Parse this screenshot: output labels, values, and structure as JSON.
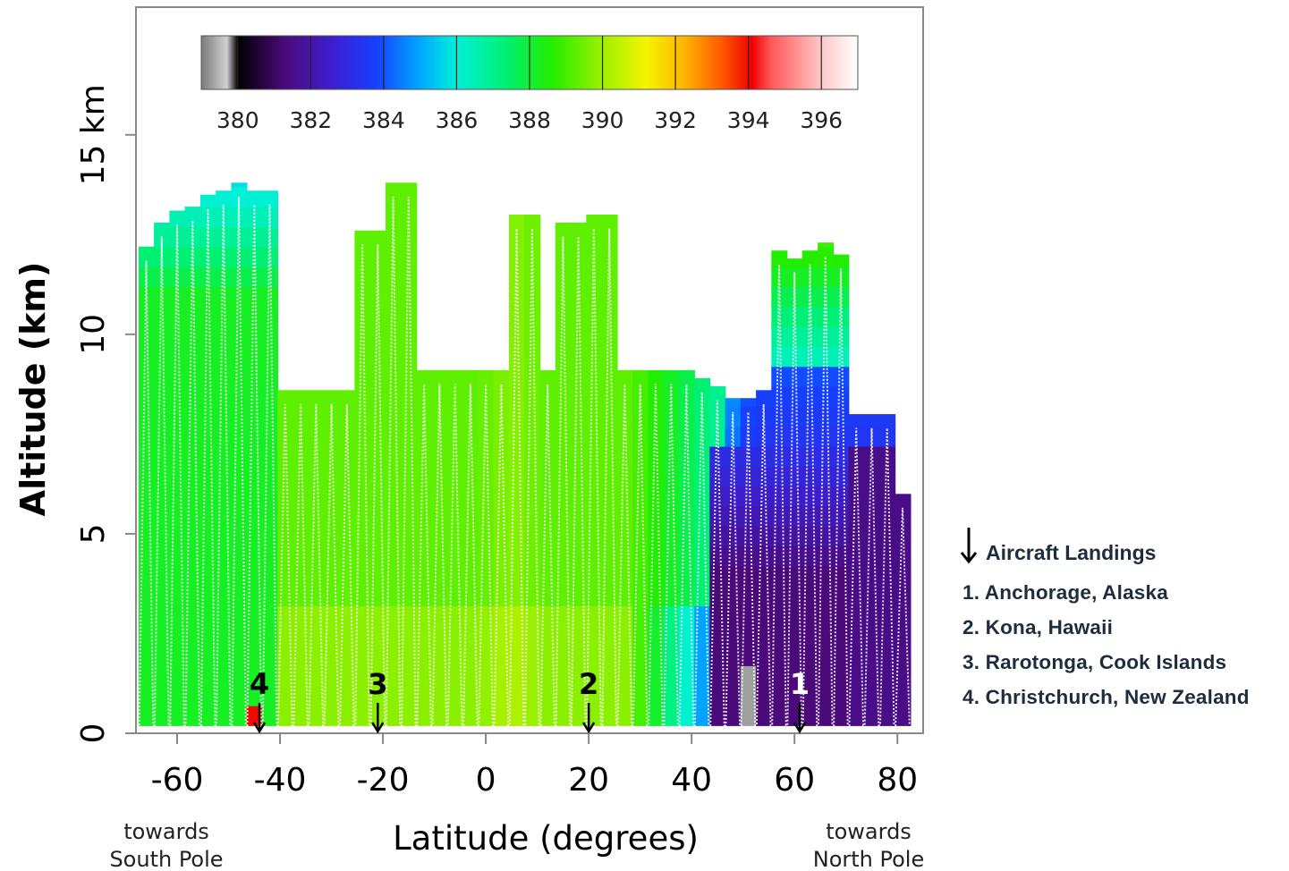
{
  "chart_data": {
    "type": "heatmap",
    "xlabel": "Latitude (degrees)",
    "ylabel": "Altitude (km)",
    "ylabel_top": "15 km",
    "x_ticks": [
      -60,
      -40,
      -20,
      0,
      20,
      40,
      60,
      80
    ],
    "y_ticks": [
      0,
      5,
      10
    ],
    "xlim": [
      -68,
      85
    ],
    "ylim": [
      0,
      18.2
    ],
    "x_notes": {
      "left": [
        "towards",
        "South Pole"
      ],
      "right": [
        "towards",
        "North Pole"
      ]
    },
    "colorbar": {
      "range": [
        379,
        397
      ],
      "ticks": [
        380,
        382,
        384,
        386,
        388,
        390,
        392,
        394,
        396
      ],
      "stops": [
        {
          "v": 379.0,
          "c": "#7a7a7a"
        },
        {
          "v": 379.7,
          "c": "#d0d0d0"
        },
        {
          "v": 380.0,
          "c": "#000000"
        },
        {
          "v": 381.3,
          "c": "#4b0a7a"
        },
        {
          "v": 382.6,
          "c": "#3c1fd0"
        },
        {
          "v": 383.8,
          "c": "#1540ff"
        },
        {
          "v": 385.0,
          "c": "#00a8ff"
        },
        {
          "v": 386.0,
          "c": "#00f0d8"
        },
        {
          "v": 387.4,
          "c": "#00f070"
        },
        {
          "v": 388.6,
          "c": "#22ee00"
        },
        {
          "v": 390.0,
          "c": "#9cf000"
        },
        {
          "v": 391.2,
          "c": "#f5f500"
        },
        {
          "v": 392.3,
          "c": "#ffb000"
        },
        {
          "v": 393.3,
          "c": "#ff5500"
        },
        {
          "v": 394.1,
          "c": "#ee0000"
        },
        {
          "v": 394.6,
          "c": "#ff5555"
        },
        {
          "v": 396.0,
          "c": "#ffc8c8"
        },
        {
          "v": 397.0,
          "c": "#ffffff"
        }
      ]
    },
    "profiles": [
      {
        "lat": -66,
        "top": 12.2
      },
      {
        "lat": -63,
        "top": 12.8
      },
      {
        "lat": -60,
        "top": 13.1
      },
      {
        "lat": -57,
        "top": 13.2
      },
      {
        "lat": -54,
        "top": 13.5
      },
      {
        "lat": -51,
        "top": 13.6
      },
      {
        "lat": -48,
        "top": 13.8
      },
      {
        "lat": -45,
        "top": 13.6
      },
      {
        "lat": -42,
        "top": 13.6
      },
      {
        "lat": -39,
        "top": 8.6
      },
      {
        "lat": -36,
        "top": 8.6
      },
      {
        "lat": -33,
        "top": 8.6
      },
      {
        "lat": -30,
        "top": 8.6
      },
      {
        "lat": -27,
        "top": 8.6
      },
      {
        "lat": -24,
        "top": 12.6
      },
      {
        "lat": -21,
        "top": 12.6
      },
      {
        "lat": -18,
        "top": 13.8
      },
      {
        "lat": -15,
        "top": 13.8
      },
      {
        "lat": -12,
        "top": 9.1
      },
      {
        "lat": -9,
        "top": 9.1
      },
      {
        "lat": -6,
        "top": 9.1
      },
      {
        "lat": -3,
        "top": 9.1
      },
      {
        "lat": 0,
        "top": 9.1
      },
      {
        "lat": 3,
        "top": 9.1
      },
      {
        "lat": 6,
        "top": 13.0
      },
      {
        "lat": 9,
        "top": 13.0
      },
      {
        "lat": 12,
        "top": 9.1
      },
      {
        "lat": 15,
        "top": 12.8
      },
      {
        "lat": 18,
        "top": 12.8
      },
      {
        "lat": 21,
        "top": 13.0
      },
      {
        "lat": 24,
        "top": 13.0
      },
      {
        "lat": 27,
        "top": 9.1
      },
      {
        "lat": 30,
        "top": 9.1
      },
      {
        "lat": 33,
        "top": 9.1
      },
      {
        "lat": 36,
        "top": 9.1
      },
      {
        "lat": 39,
        "top": 9.1
      },
      {
        "lat": 42,
        "top": 8.9
      },
      {
        "lat": 45,
        "top": 8.7
      },
      {
        "lat": 48,
        "top": 8.4
      },
      {
        "lat": 51,
        "top": 8.4
      },
      {
        "lat": 54,
        "top": 8.6
      },
      {
        "lat": 57,
        "top": 12.1
      },
      {
        "lat": 60,
        "top": 11.9
      },
      {
        "lat": 63,
        "top": 12.1
      },
      {
        "lat": 66,
        "top": 12.3
      },
      {
        "lat": 69,
        "top": 12.0
      },
      {
        "lat": 72,
        "top": 8.0
      },
      {
        "lat": 75,
        "top": 8.0
      },
      {
        "lat": 78,
        "top": 8.0
      },
      {
        "lat": 81,
        "top": 6.0
      }
    ],
    "landings": [
      {
        "label": "4",
        "lat": -44
      },
      {
        "label": "3",
        "lat": -21
      },
      {
        "label": "2",
        "lat": 20
      },
      {
        "label": "1",
        "lat": 61
      }
    ]
  },
  "legend": {
    "title": "Aircraft Landings",
    "items": [
      "1. Anchorage, Alaska",
      "2. Kona, Hawaii",
      "3. Rarotonga, Cook Islands",
      "4. Christchurch, New Zealand"
    ]
  }
}
